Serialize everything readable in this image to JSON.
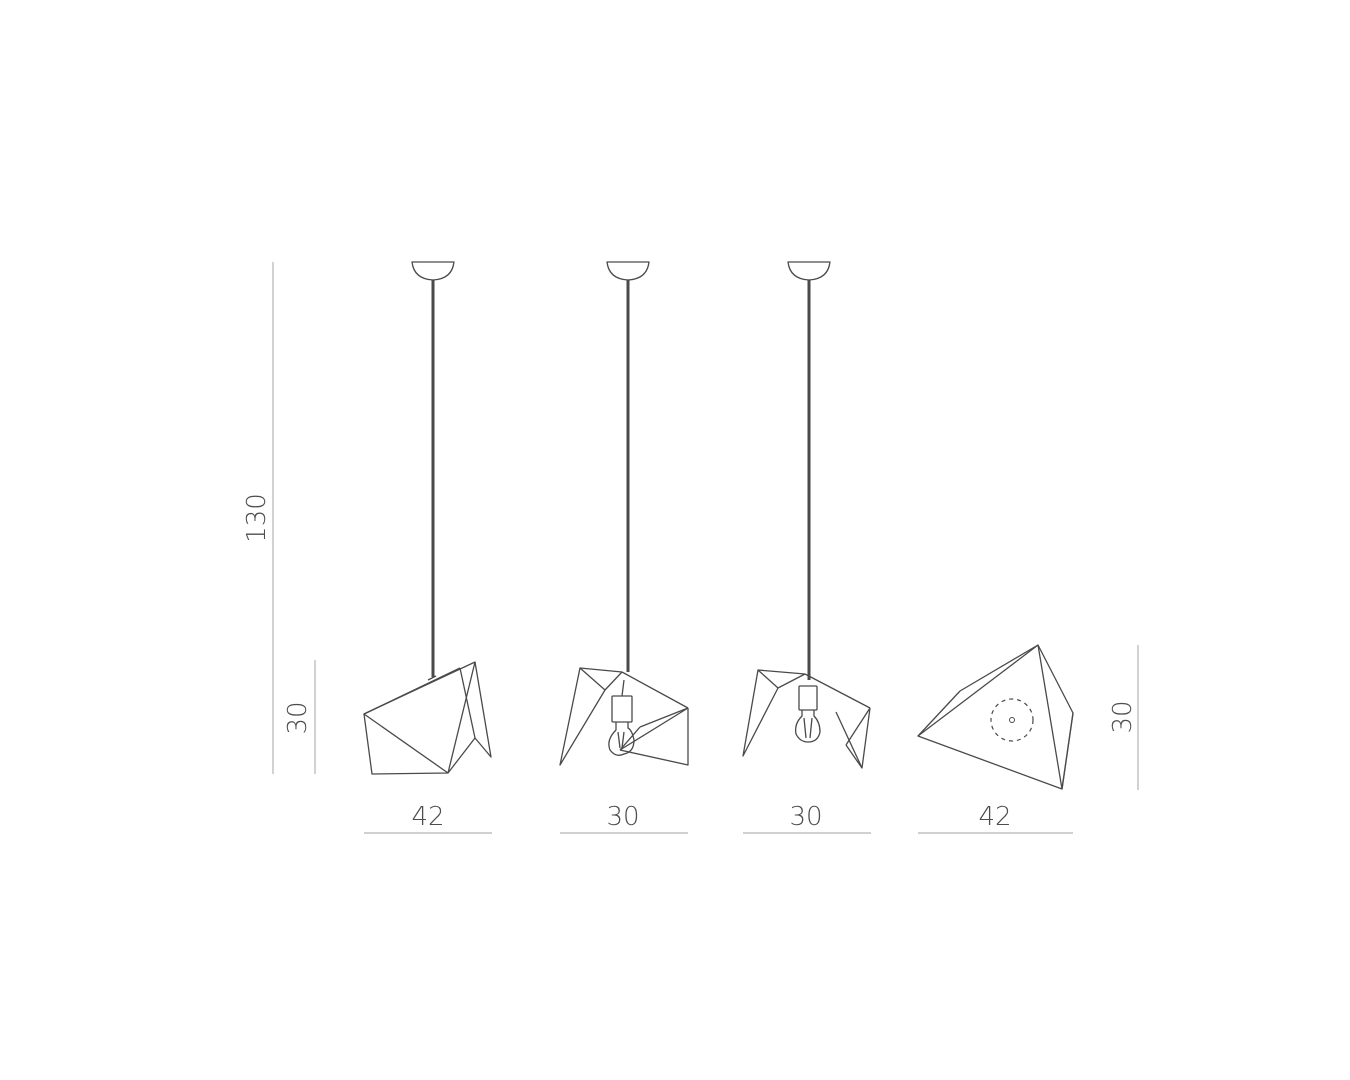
{
  "dimensions": {
    "total_height": "130",
    "left_shade_height": "30",
    "right_shade_height": "30",
    "widths": [
      "42",
      "30",
      "30",
      "42"
    ]
  },
  "colors": {
    "line": "#4a4a4a",
    "dimension_line": "#b5b5b5",
    "text": "#4d4d4d",
    "background": "#ffffff"
  }
}
